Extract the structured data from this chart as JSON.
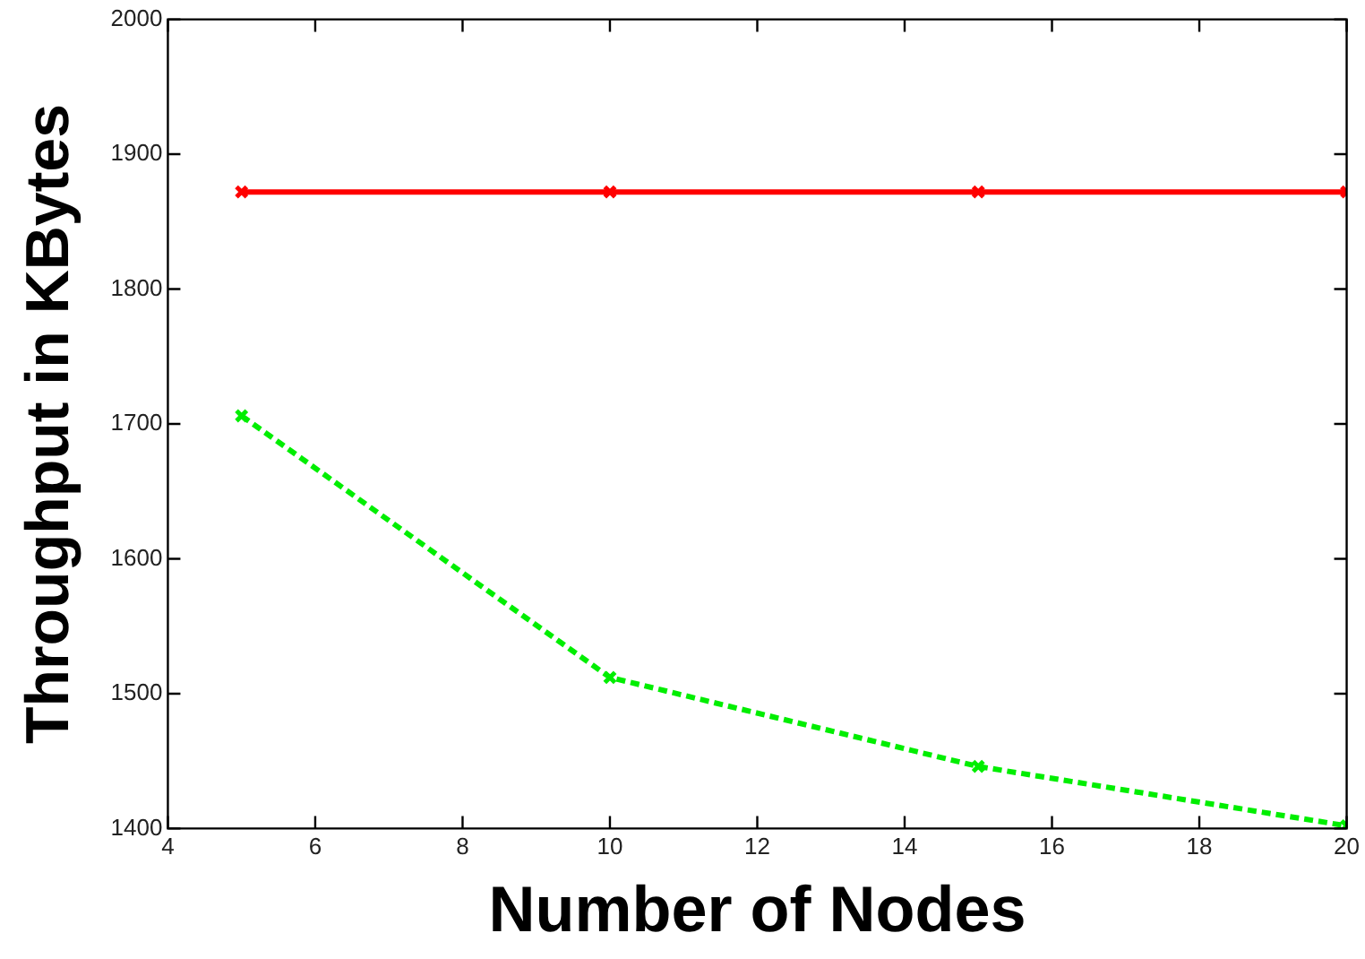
{
  "chart_data": {
    "type": "line",
    "xlabel": "Number of Nodes",
    "ylabel": "Throughput in KBytes",
    "x": [
      5,
      10,
      15,
      20
    ],
    "series": [
      {
        "color": "#ff0000",
        "values": [
          1872,
          1872,
          1872,
          1872
        ],
        "marker": "cross",
        "line_style": "solid"
      },
      {
        "color": "#00ee00",
        "values": [
          1706,
          1512,
          1446,
          1402
        ],
        "marker": "cross",
        "line_style": "dashed"
      }
    ],
    "xlim": [
      4,
      20
    ],
    "xticks": [
      4,
      6,
      8,
      10,
      12,
      14,
      16,
      18,
      20
    ],
    "ylim": [
      1400,
      2000
    ],
    "yticks": [
      1400,
      1500,
      1600,
      1700,
      1800,
      1900,
      2000
    ],
    "grid": false,
    "legend": false
  }
}
